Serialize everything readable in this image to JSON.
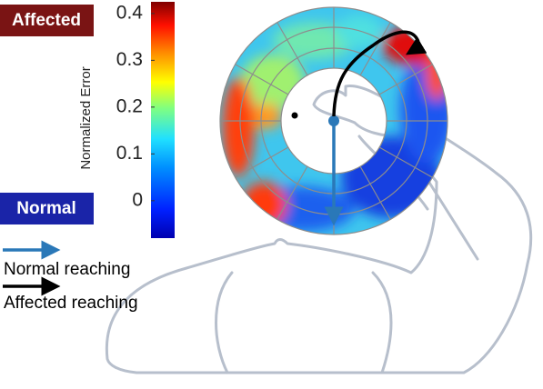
{
  "badges": {
    "affected": "Affected",
    "normal": "Normal"
  },
  "colorbar": {
    "label": "Normalized Error",
    "clim": [
      -0.08,
      0.425
    ],
    "ticks": [
      0,
      0.1,
      0.2,
      0.3,
      0.4
    ]
  },
  "legend": {
    "normal_reaching": "Normal reaching",
    "affected_reaching": "Affected reaching"
  }
}
